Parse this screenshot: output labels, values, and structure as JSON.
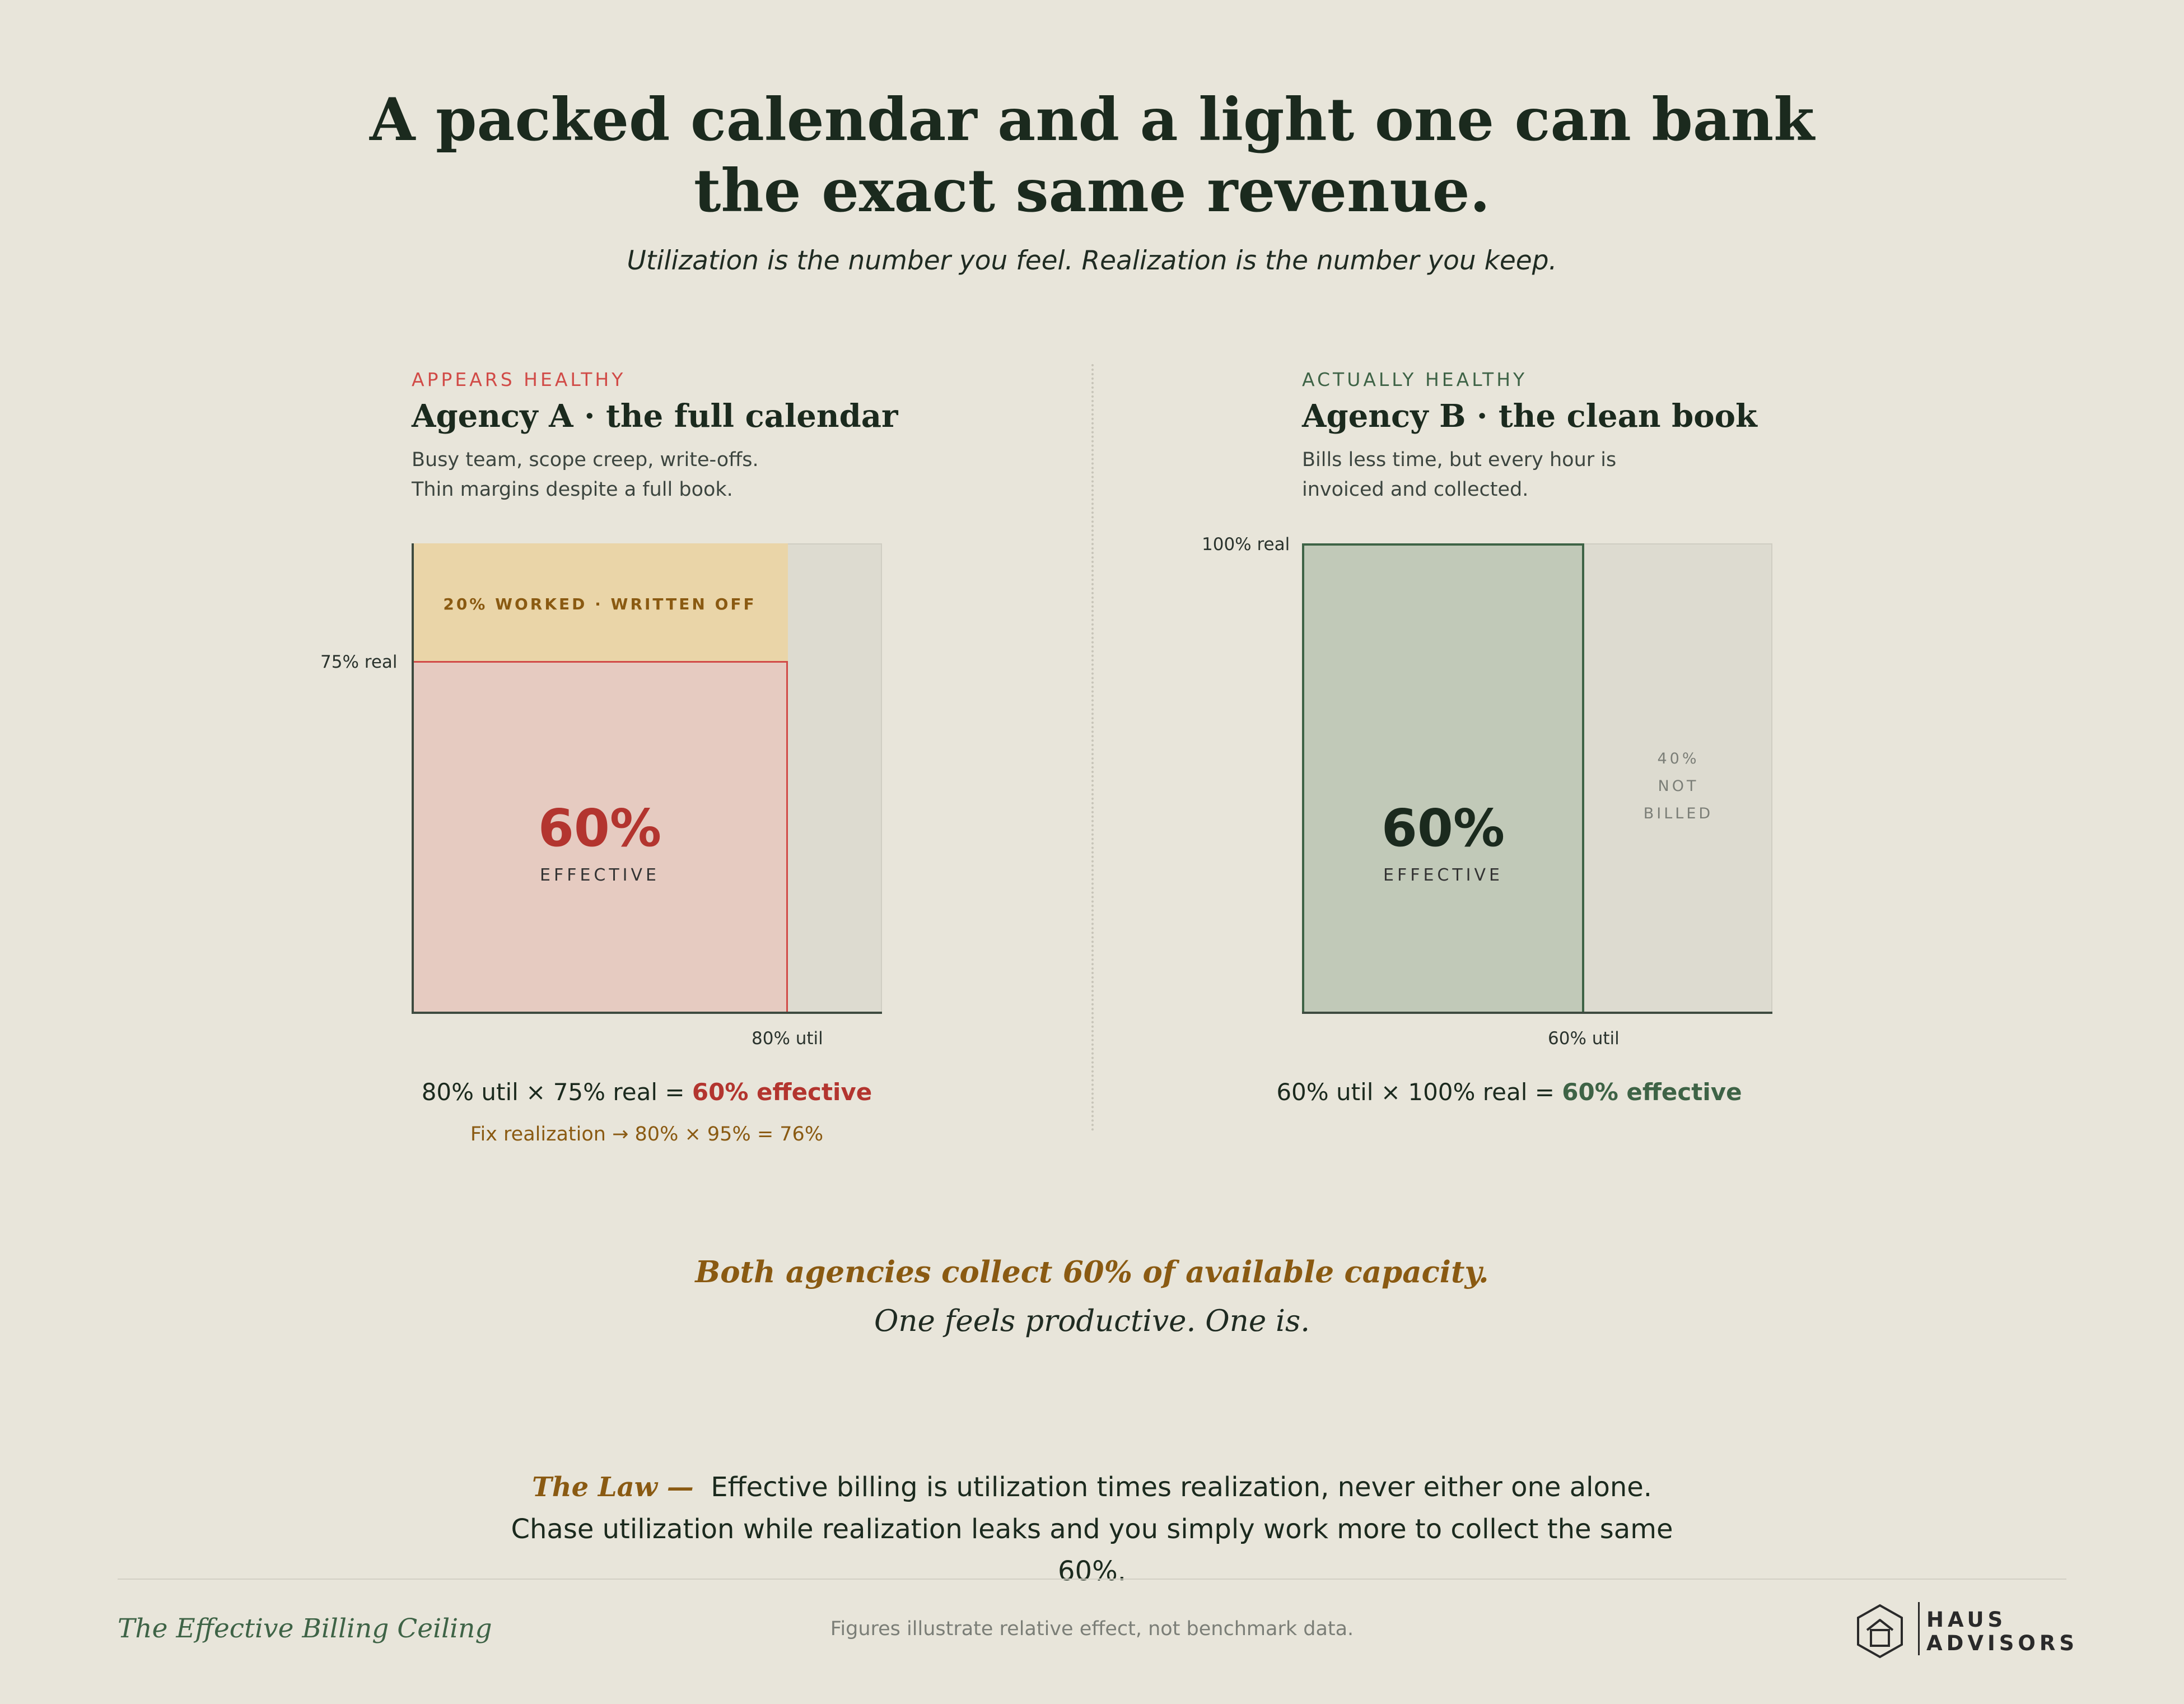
{
  "header": {
    "headline_line1": "A packed calendar and a light one can bank",
    "headline_line2": "the exact same revenue.",
    "subtitle": "Utilization is the number you feel. Realization is the number you keep."
  },
  "panel_a": {
    "kicker": "APPEARS HEALTHY",
    "title": "Agency A · the full calendar",
    "desc_line1": "Busy team, scope creep, write-offs.",
    "desc_line2": "Thin margins despite a full book.",
    "written_off_label": "20% WORKED · WRITTEN OFF",
    "real_label": "75% real",
    "util_label": "80% util",
    "effective_value": "60%",
    "effective_label": "EFFECTIVE",
    "equation_prefix": "80% util × 75% real = ",
    "equation_result": "60% effective",
    "fix_note": "Fix realization → 80% × 95% = 76%",
    "utilization": 0.8,
    "realization": 0.75,
    "worked_extra": 0.2
  },
  "panel_b": {
    "kicker": "ACTUALLY HEALTHY",
    "title": "Agency B · the clean book",
    "desc_line1": "Bills less time, but every hour is",
    "desc_line2": "invoiced and collected.",
    "real_label": "100% real",
    "util_label": "60% util",
    "effective_value": "60%",
    "effective_label": "EFFECTIVE",
    "not_billed_line1": "40%",
    "not_billed_line2": "NOT",
    "not_billed_line3": "BILLED",
    "equation_prefix": "60% util × 100% real = ",
    "equation_result": "60% effective",
    "utilization": 0.6,
    "realization": 1.0
  },
  "summary": {
    "line1": "Both agencies collect 60% of available capacity.",
    "line2": "One feels productive. One is."
  },
  "law": {
    "label": "The Law —",
    "text": "Effective billing is utilization times realization, never either one alone. Chase utilization while realization leaks and you simply work more to collect the same 60%."
  },
  "footer": {
    "title": "The Effective Billing Ceiling",
    "note": "Figures illustrate relative effect, not benchmark data.",
    "brand_top": "HAUS",
    "brand_bottom": "ADVISORS",
    "logo_icon": "house-hexagon-icon"
  },
  "colors": {
    "background": "#e8e5da",
    "red_accent": "#d14b47",
    "red_text": "#b3352f",
    "red_fill": "#e6cbc1",
    "gold_fill": "#ead5a8",
    "gold_text": "#8a5a12",
    "green_accent": "#3e6346",
    "green_fill": "#c1c9b8",
    "gray_fill": "#dddbd0",
    "dark": "#1b2a1e"
  }
}
